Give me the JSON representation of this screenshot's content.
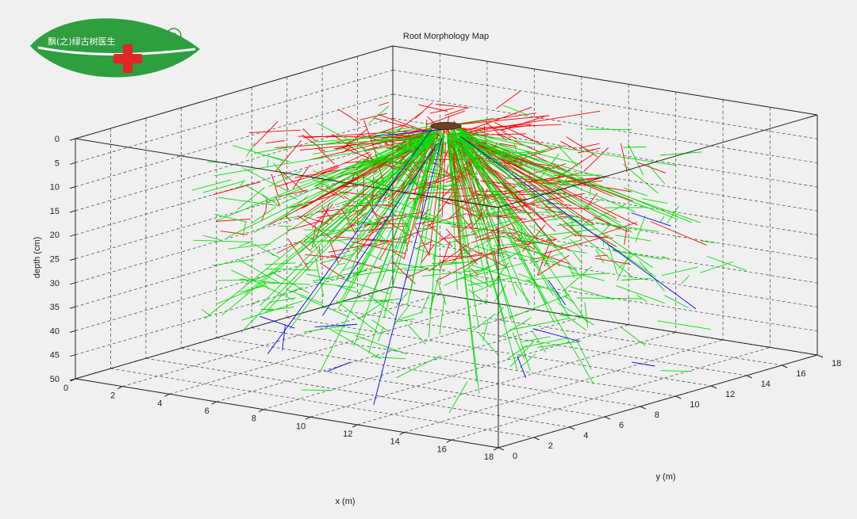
{
  "logo": {
    "text": "飘(之)绿古树医生",
    "registered_mark": "R",
    "leaf_color": "#2e9e3f",
    "cross_color": "#e0262b"
  },
  "chart_data": {
    "type": "3d-line",
    "title": "Root Morphology Map",
    "xlabel": "x (m)",
    "ylabel": "y (m)",
    "zlabel": "depth (cm)",
    "xlim": [
      0,
      18
    ],
    "ylim": [
      0,
      18
    ],
    "zlim": [
      0,
      50
    ],
    "z_reversed": true,
    "grid": true,
    "x_ticks": [
      "0",
      "2",
      "4",
      "6",
      "8",
      "10",
      "12",
      "14",
      "16",
      "18"
    ],
    "y_ticks": [
      "0",
      "2",
      "4",
      "6",
      "8",
      "10",
      "12",
      "14",
      "16",
      "18"
    ],
    "z_ticks": [
      "0",
      "5",
      "10",
      "15",
      "20",
      "25",
      "30",
      "35",
      "40",
      "45",
      "50"
    ],
    "trunk": {
      "x": 9,
      "y": 9,
      "depth": 0,
      "color": "#6b4423"
    },
    "series": [
      {
        "color": "#ff0000",
        "depth_range": [
          0,
          25
        ],
        "radius_range": [
          1,
          7
        ]
      },
      {
        "color": "#00e000",
        "depth_range": [
          5,
          45
        ],
        "radius_range": [
          2,
          9
        ]
      },
      {
        "color": "#0000ff",
        "depth_range": [
          10,
          50
        ],
        "radius_range": [
          3,
          9
        ]
      }
    ]
  }
}
